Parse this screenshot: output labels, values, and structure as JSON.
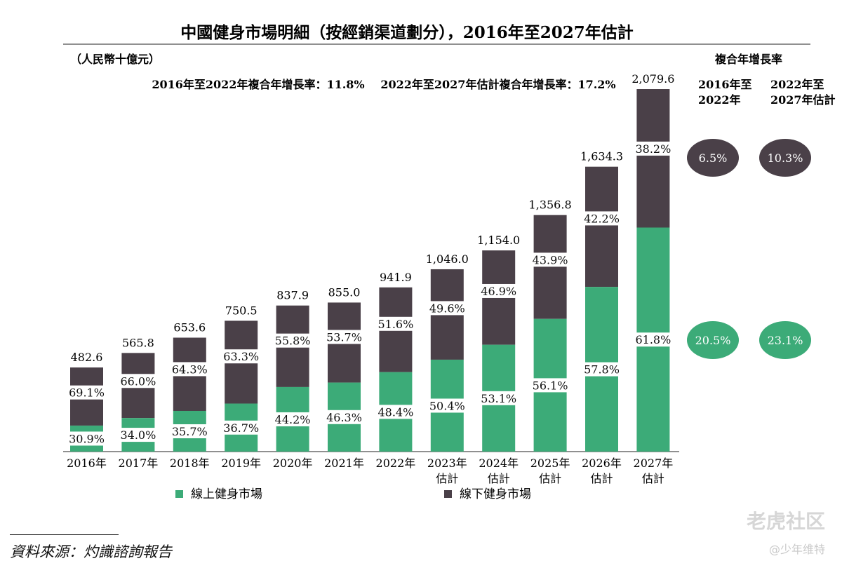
{
  "chart_data": {
    "type": "bar",
    "stacked": true,
    "title": "中國健身市場明細（按經銷渠道劃分），2016年至2027年估計",
    "unit_label": "（人民幣十億元）",
    "categories": [
      "2016年",
      "2017年",
      "2018年",
      "2019年",
      "2020年",
      "2021年",
      "2022年",
      "2023年\n估計",
      "2024年\n估計",
      "2025年\n估計",
      "2026年\n估計",
      "2027年\n估計"
    ],
    "totals": [
      482.6,
      565.8,
      653.6,
      750.5,
      837.9,
      855.0,
      941.9,
      1046.0,
      1154.0,
      1356.8,
      1634.3,
      2079.6
    ],
    "total_labels": [
      "482.6",
      "565.8",
      "653.6",
      "750.5",
      "837.9",
      "855.0",
      "941.9",
      "1,046.0",
      "1,154.0",
      "1,356.8",
      "1,634.3",
      "2,079.6"
    ],
    "series": [
      {
        "name": "線上健身市場",
        "color": "#3cab78",
        "share_labels": [
          "30.9%",
          "34.0%",
          "35.7%",
          "36.7%",
          "44.2%",
          "46.3%",
          "48.4%",
          "50.4%",
          "53.1%",
          "56.1%",
          "57.8%",
          "61.8%"
        ],
        "shares": [
          30.9,
          34.0,
          35.7,
          36.7,
          44.2,
          46.3,
          48.4,
          50.4,
          53.1,
          56.1,
          57.8,
          61.8
        ]
      },
      {
        "name": "線下健身市場",
        "color": "#4a4048",
        "share_labels": [
          "69.1%",
          "66.0%",
          "64.3%",
          "63.3%",
          "55.8%",
          "53.7%",
          "51.6%",
          "49.6%",
          "46.9%",
          "43.9%",
          "42.2%",
          "38.2%"
        ],
        "shares": [
          69.1,
          66.0,
          64.3,
          63.3,
          55.8,
          53.7,
          51.6,
          49.6,
          46.9,
          43.9,
          42.2,
          38.2
        ]
      }
    ],
    "cagr_notes": [
      "2016年至2022年複合年增長率：11.8%",
      "2022年至2027年估計複合年增長率：17.2%"
    ],
    "cagr_table": {
      "header": "複合年增長率",
      "columns": [
        [
          "2016年至",
          "2022年"
        ],
        [
          "2022年至",
          "2027年估計"
        ]
      ],
      "rows": [
        {
          "series": "線下健身市場",
          "values": [
            "6.5%",
            "10.3%"
          ]
        },
        {
          "series": "線上健身市場",
          "values": [
            "20.5%",
            "23.1%"
          ]
        }
      ]
    },
    "legend_placement": "bottom",
    "grid": false
  },
  "source": "資料來源：灼識諮詢報告",
  "watermark": "老虎社区",
  "watermark_sub": "@少年维特"
}
